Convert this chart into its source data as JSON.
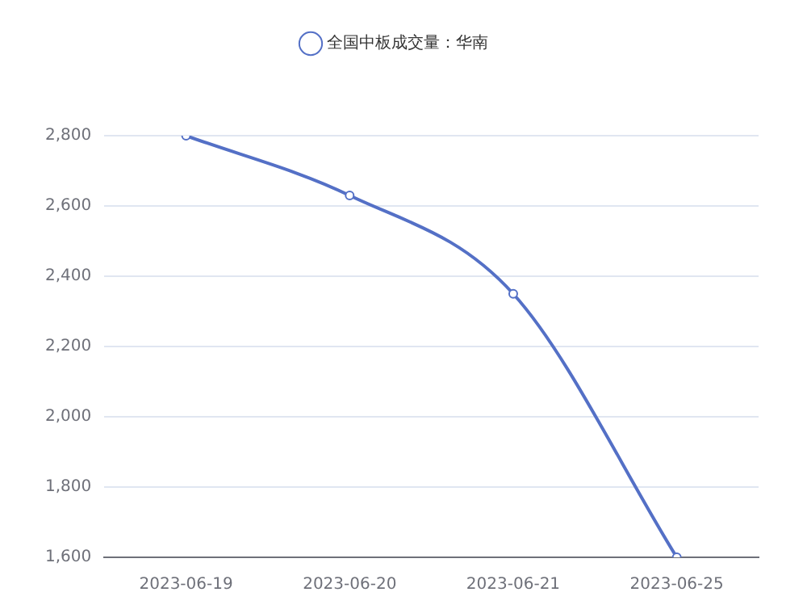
{
  "chart_data": {
    "type": "line",
    "categories": [
      "2023-06-19",
      "2023-06-20",
      "2023-06-21",
      "2023-06-25"
    ],
    "series": [
      {
        "name": "全国中板成交量：华南",
        "color": "#5470c6",
        "values": [
          2800,
          2630,
          2350,
          1600
        ]
      }
    ],
    "ylim": [
      1600,
      2800
    ],
    "yticks": [
      {
        "value": 1600,
        "label": "1,600"
      },
      {
        "value": 1800,
        "label": "1,800"
      },
      {
        "value": 2000,
        "label": "2,000"
      },
      {
        "value": 2200,
        "label": "2,200"
      },
      {
        "value": 2400,
        "label": "2,400"
      },
      {
        "value": 2600,
        "label": "2,600"
      },
      {
        "value": 2800,
        "label": "2,800"
      }
    ],
    "grid": "y",
    "legend": "top",
    "marker": "circle"
  }
}
